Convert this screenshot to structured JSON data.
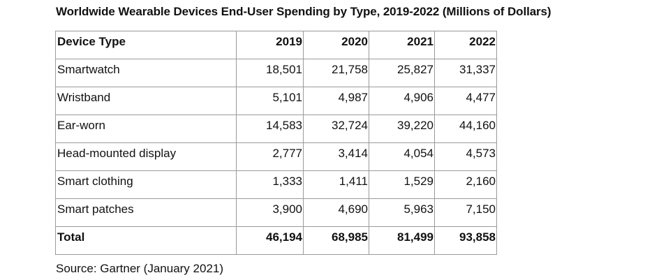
{
  "title": "Worldwide Wearable Devices End-User Spending by Type, 2019-2022 (Millions of Dollars)",
  "source": "Source: Gartner (January 2021)",
  "chart_data": {
    "type": "table",
    "title": "Worldwide Wearable Devices End-User Spending by Type, 2019-2022 (Millions of Dollars)",
    "columns": [
      "Device Type",
      "2019",
      "2020",
      "2021",
      "2022"
    ],
    "rows": [
      [
        "Smartwatch",
        "18,501",
        "21,758",
        "25,827",
        "31,337"
      ],
      [
        "Wristband",
        "5,101",
        "4,987",
        "4,906",
        "4,477"
      ],
      [
        "Ear-worn",
        "14,583",
        "32,724",
        "39,220",
        "44,160"
      ],
      [
        "Head-mounted display",
        "2,777",
        "3,414",
        "4,054",
        "4,573"
      ],
      [
        "Smart clothing",
        "1,333",
        "1,411",
        "1,529",
        "2,160"
      ],
      [
        "Smart patches",
        "3,900",
        "4,690",
        "5,963",
        "7,150"
      ]
    ],
    "total": [
      "Total",
      "46,194",
      "68,985",
      "81,499",
      "93,858"
    ]
  }
}
